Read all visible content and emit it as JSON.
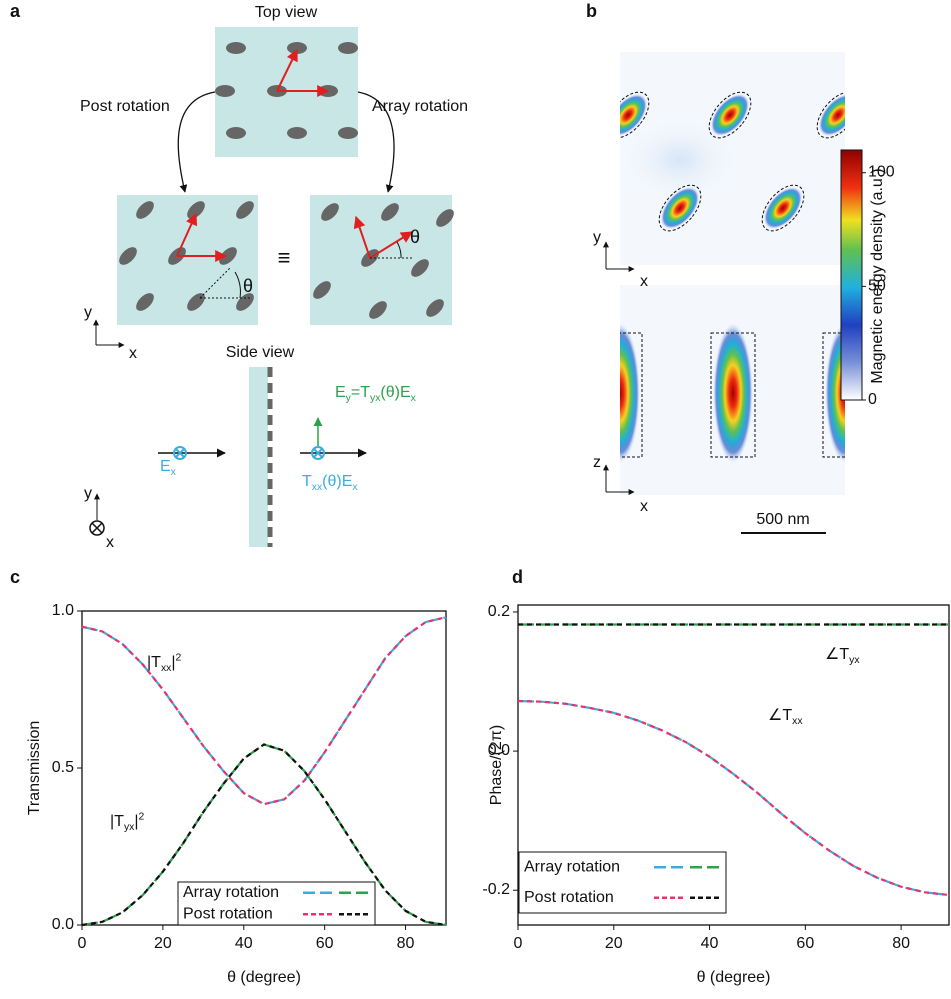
{
  "panel_a": {
    "label": "a",
    "top_view": "Top view",
    "post_rotation": "Post rotation",
    "array_rotation": "Array rotation",
    "equiv": "≡",
    "theta_left": "θ",
    "theta_right": "θ",
    "axes_xy": {
      "y": "y",
      "x": "x"
    },
    "side_view": "Side view",
    "ey_formula": [
      {
        "text": "E",
        "sub": "y"
      },
      {
        "text": "=T",
        "sub": "yx"
      },
      {
        "text": "(θ)E",
        "sub": "x"
      }
    ],
    "ex": {
      "text": "E",
      "sub": "x"
    },
    "txx": [
      {
        "text": "T",
        "sub": "xx"
      },
      {
        "text": "(θ)E",
        "sub": "x"
      }
    ],
    "axes_yx": {
      "y": "y",
      "x": "x"
    }
  },
  "panel_b": {
    "label": "b",
    "axes_top": {
      "y": "y",
      "x": "x"
    },
    "axes_bottom": {
      "z": "z",
      "x": "x"
    },
    "scale_bar": "500 nm",
    "colorbar": {
      "label": "Magnetic energy density (a.u.)",
      "lim": [
        0,
        110
      ],
      "ticks": [
        0,
        50,
        100
      ]
    }
  },
  "chart_data": [
    {
      "type": "line",
      "panel_label": "c",
      "xlabel": "θ (degree)",
      "ylabel": "Transmission",
      "x": [
        0,
        5,
        10,
        15,
        20,
        25,
        30,
        35,
        40,
        45,
        50,
        55,
        60,
        65,
        70,
        75,
        80,
        85,
        90
      ],
      "xlim": [
        0,
        90
      ],
      "ylim": [
        0,
        1
      ],
      "xticks": [
        0,
        20,
        40,
        60,
        80
      ],
      "yticks": [
        {
          "value": 0,
          "label": "0.0"
        },
        0.5,
        {
          "value": 1,
          "label": "1.0"
        }
      ],
      "series": [
        {
          "name": "Array rotation",
          "color": "#3aaee0",
          "dash": "long",
          "values": [
            0.95,
            0.935,
            0.895,
            0.83,
            0.75,
            0.66,
            0.57,
            0.49,
            0.42,
            0.385,
            0.4,
            0.46,
            0.55,
            0.65,
            0.75,
            0.85,
            0.92,
            0.965,
            0.98
          ]
        },
        {
          "name": "Array rotation",
          "color": "#2ca24a",
          "dash": "long",
          "values": [
            0,
            0.01,
            0.04,
            0.095,
            0.17,
            0.26,
            0.36,
            0.45,
            0.53,
            0.575,
            0.555,
            0.49,
            0.4,
            0.3,
            0.2,
            0.11,
            0.045,
            0.01,
            0
          ]
        },
        {
          "name": "Post rotation",
          "color": "#e8336e",
          "dash": "short",
          "values": [
            0.95,
            0.935,
            0.895,
            0.83,
            0.75,
            0.66,
            0.57,
            0.49,
            0.42,
            0.385,
            0.4,
            0.46,
            0.55,
            0.65,
            0.75,
            0.85,
            0.92,
            0.965,
            0.98
          ]
        },
        {
          "name": "Post rotation",
          "color": "#111111",
          "dash": "short",
          "values": [
            0,
            0.01,
            0.04,
            0.095,
            0.17,
            0.26,
            0.36,
            0.45,
            0.53,
            0.575,
            0.555,
            0.49,
            0.4,
            0.3,
            0.2,
            0.11,
            0.045,
            0.01,
            0
          ]
        }
      ],
      "annotations": [
        {
          "text": "|T",
          "sub": "xx",
          "tail": "|",
          "sup": "2"
        },
        {
          "text": "|T",
          "sub": "yx",
          "tail": "|",
          "sup": "2"
        }
      ]
    },
    {
      "type": "line",
      "panel_label": "d",
      "xlabel": "θ (degree)",
      "ylabel": "Phase/(2π)",
      "x": [
        0,
        5,
        10,
        15,
        20,
        25,
        30,
        35,
        40,
        45,
        50,
        55,
        60,
        65,
        70,
        75,
        80,
        85,
        90
      ],
      "xlim": [
        0,
        90
      ],
      "ylim": [
        -0.25,
        0.21
      ],
      "xticks": [
        0,
        20,
        40,
        60,
        80
      ],
      "yticks": [
        {
          "value": -0.2,
          "label": "-0.2"
        },
        {
          "value": 0,
          "label": "0.0"
        },
        0.2
      ],
      "series": [
        {
          "name": "Array rotation",
          "color": "#3aaee0",
          "dash": "long",
          "values": [
            0.072,
            0.071,
            0.068,
            0.062,
            0.055,
            0.044,
            0.03,
            0.013,
            -0.008,
            -0.033,
            -0.06,
            -0.09,
            -0.118,
            -0.143,
            -0.165,
            -0.182,
            -0.195,
            -0.203,
            -0.207
          ]
        },
        {
          "name": "Array rotation",
          "color": "#2ca24a",
          "dash": "long",
          "values": [
            0.182,
            0.182,
            0.182,
            0.182,
            0.182,
            0.182,
            0.182,
            0.182,
            0.182,
            0.182,
            0.182,
            0.182,
            0.182,
            0.182,
            0.182,
            0.182,
            0.182,
            0.182,
            0.182
          ]
        },
        {
          "name": "Post rotation",
          "color": "#e8336e",
          "dash": "short",
          "values": [
            0.072,
            0.071,
            0.068,
            0.062,
            0.055,
            0.044,
            0.03,
            0.013,
            -0.008,
            -0.033,
            -0.06,
            -0.09,
            -0.118,
            -0.143,
            -0.165,
            -0.182,
            -0.195,
            -0.203,
            -0.207
          ]
        },
        {
          "name": "Post rotation",
          "color": "#111111",
          "dash": "short",
          "values": [
            0.182,
            0.182,
            0.182,
            0.182,
            0.182,
            0.182,
            0.182,
            0.182,
            0.182,
            0.182,
            0.182,
            0.182,
            0.182,
            0.182,
            0.182,
            0.182,
            0.182,
            0.182,
            0.182
          ]
        }
      ],
      "annotations": [
        {
          "text": "∠T",
          "sub": "yx"
        },
        {
          "text": "∠T",
          "sub": "xx"
        }
      ]
    }
  ]
}
